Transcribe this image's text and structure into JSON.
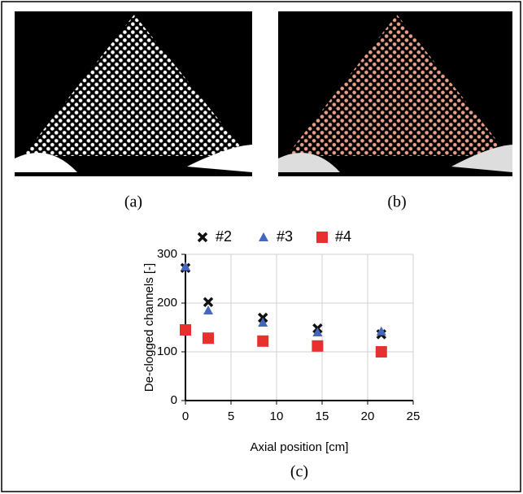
{
  "figure": {
    "captions": [
      "(a)",
      "(b)",
      "(c)"
    ]
  },
  "chart_data": {
    "type": "scatter",
    "x_label": "Axial position [cm]",
    "y_label": "De-clogged channels [-]",
    "xlim": [
      0,
      25
    ],
    "ylim": [
      0,
      300
    ],
    "xticks": [
      0,
      5,
      10,
      15,
      20,
      25
    ],
    "yticks": [
      0,
      100,
      200,
      300
    ],
    "grid": true,
    "series": [
      {
        "name": "#2",
        "marker": "x",
        "color": "#111111",
        "x": [
          0,
          2.5,
          8.5,
          14.5,
          21.5
        ],
        "values": [
          272,
          202,
          170,
          148,
          136
        ]
      },
      {
        "name": "#3",
        "marker": "triangle",
        "color": "#4466bb",
        "x": [
          0,
          2.5,
          8.5,
          14.5,
          21.5
        ],
        "values": [
          275,
          185,
          160,
          140,
          142
        ]
      },
      {
        "name": "#4",
        "marker": "square",
        "color": "#e8302e",
        "x": [
          0,
          2.5,
          8.5,
          14.5,
          21.5
        ],
        "values": [
          145,
          128,
          122,
          112,
          100
        ]
      }
    ]
  }
}
